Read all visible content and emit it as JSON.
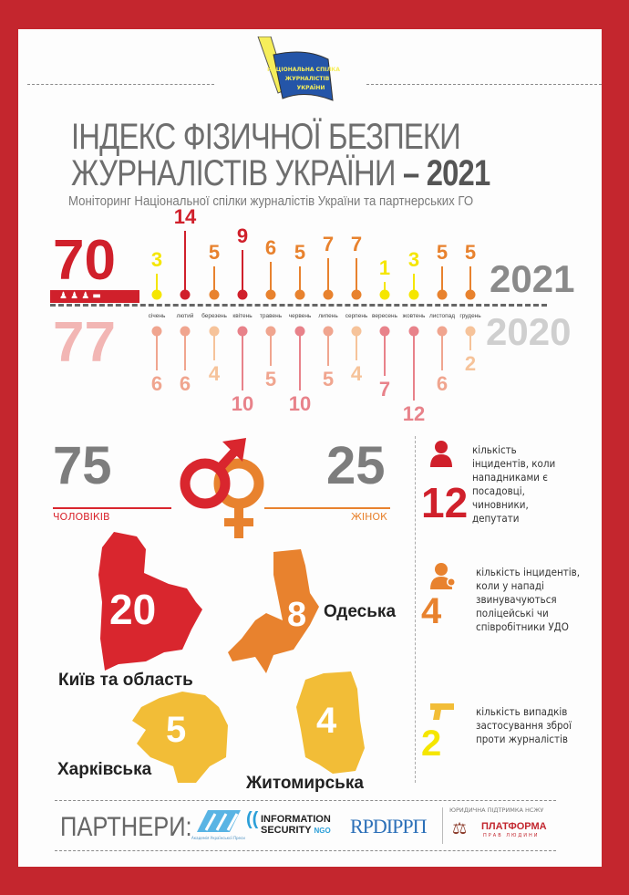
{
  "logo": {
    "text": "НАЦІОНАЛЬНА СПІЛКА ЖУРНАЛІСТІВ УКРАЇНИ"
  },
  "header": {
    "title_line1": "ІНДЕКС ФІЗИЧНОЇ БЕЗПЕКИ",
    "title_line2": "ЖУРНАЛІСТІВ УКРАЇНИ",
    "title_dash": " – ",
    "title_year": "2021",
    "subtitle": "Моніторинг Національної спілки журналістів України та партнерських ГО"
  },
  "totals": {
    "total_2021": "70",
    "total_2020": "77",
    "year_2021": "2021",
    "year_2020": "2020"
  },
  "chart_data": {
    "type": "lollipop",
    "categories": [
      "січень",
      "лютий",
      "березень",
      "квітень",
      "травень",
      "червень",
      "липень",
      "серпень",
      "вересень",
      "жовтень",
      "листопад",
      "грудень"
    ],
    "series": [
      {
        "name": "2021",
        "values": [
          3,
          14,
          5,
          9,
          6,
          5,
          7,
          7,
          1,
          3,
          5,
          5
        ]
      },
      {
        "name": "2020",
        "values": [
          6,
          6,
          4,
          10,
          5,
          10,
          5,
          4,
          7,
          12,
          6,
          2
        ]
      }
    ],
    "colors": {
      "low": "#f5e600",
      "mid": "#e8822e",
      "high": "#d0202b",
      "pink_low": "#f6c39a",
      "pink_mid": "#f0a58f",
      "pink_high": "#e8828a"
    }
  },
  "gender": {
    "men_value": "75",
    "men_label": "ЧОЛОВІКІВ",
    "women_value": "25",
    "women_label": "ЖІНОК",
    "men_color": "#d9262e",
    "women_color": "#e8822e"
  },
  "stats": [
    {
      "value": "12",
      "text": "кількість інцидентів, коли нападниками є посадовці, чиновники, депутати",
      "icon": "official-icon",
      "color": "#d0202b"
    },
    {
      "value": "4",
      "text": "кількість інцидентів, коли у нападі звинувачуються поліцейські чи співробітники УДО",
      "icon": "police-icon",
      "color": "#e8822e"
    },
    {
      "value": "2",
      "text": "кількість випадків застосування зброї проти журналістів",
      "icon": "gun-icon",
      "color": "#f5e600"
    }
  ],
  "regions": [
    {
      "name": "Київ та область",
      "value": "20",
      "color": "#d9262e"
    },
    {
      "name": "Одеська",
      "value": "8",
      "color": "#e8822e"
    },
    {
      "name": "Харківська",
      "value": "5",
      "color": "#f2bd37"
    },
    {
      "name": "Житомирська",
      "value": "4",
      "color": "#f2bd37"
    }
  ],
  "footer": {
    "partners_label": "ПАРТНЕРИ:",
    "partner1": "Академія Української Преси",
    "partner2_line1": "INFORMATION",
    "partner2_line2": "SECURITY",
    "partner2_ngo": "NGO",
    "partner3": "RPDIPPП",
    "legal_label": "ЮРИДИЧНА ПІДТРИМКА НСЖУ",
    "partner4": "ПЛАТФОРМА",
    "partner4_sub": "ПРАВ ЛЮДИНИ"
  }
}
